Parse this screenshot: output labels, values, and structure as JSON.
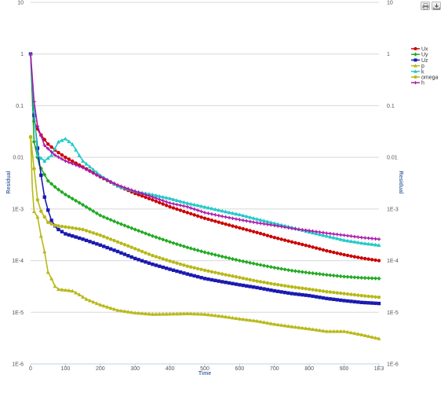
{
  "toolbar": {
    "print_icon": "printer-icon",
    "export_icon": "download-icon"
  },
  "chart_data": {
    "type": "line",
    "xlabel": "Time",
    "ylabel": "Residual",
    "ylabel_right": "Residual",
    "log_y": true,
    "xlim": [
      0,
      1000
    ],
    "ylim": [
      1e-06,
      10
    ],
    "grid": true,
    "legend_position": "top-right",
    "x_ticks": [
      "0",
      "100",
      "200",
      "300",
      "400",
      "500",
      "600",
      "700",
      "800",
      "900",
      "1E3"
    ],
    "y_ticks": [
      {
        "value": 10,
        "label": "10"
      },
      {
        "value": 1,
        "label": "1"
      },
      {
        "value": 0.1,
        "label": "0.1"
      },
      {
        "value": 0.01,
        "label": "0.01"
      },
      {
        "value": 0.001,
        "label": "1E-3"
      },
      {
        "value": 0.0001,
        "label": "1E-4"
      },
      {
        "value": 1e-05,
        "label": "1E-5"
      },
      {
        "value": 1e-06,
        "label": "1E-6"
      }
    ],
    "series": [
      {
        "name": "Ux",
        "color": "#cc0000",
        "marker": "circle",
        "points": [
          [
            0,
            1.0
          ],
          [
            10,
            0.05
          ],
          [
            25,
            0.03
          ],
          [
            50,
            0.018
          ],
          [
            75,
            0.013
          ],
          [
            100,
            0.01
          ],
          [
            150,
            0.0065
          ],
          [
            200,
            0.0042
          ],
          [
            250,
            0.0028
          ],
          [
            300,
            0.002
          ],
          [
            350,
            0.0015
          ],
          [
            400,
            0.0011
          ],
          [
            450,
            0.00085
          ],
          [
            500,
            0.00066
          ],
          [
            550,
            0.00053
          ],
          [
            600,
            0.00043
          ],
          [
            650,
            0.00035
          ],
          [
            700,
            0.00028
          ],
          [
            750,
            0.00023
          ],
          [
            800,
            0.00019
          ],
          [
            850,
            0.000155
          ],
          [
            900,
            0.00013
          ],
          [
            950,
            0.000112
          ],
          [
            1000,
            0.0001
          ]
        ]
      },
      {
        "name": "Uy",
        "color": "#22aa22",
        "marker": "diamond",
        "points": [
          [
            0,
            1.0
          ],
          [
            10,
            0.02
          ],
          [
            25,
            0.007
          ],
          [
            50,
            0.0035
          ],
          [
            75,
            0.0025
          ],
          [
            100,
            0.0019
          ],
          [
            150,
            0.0012
          ],
          [
            200,
            0.00075
          ],
          [
            250,
            0.00054
          ],
          [
            300,
            0.0004
          ],
          [
            350,
            0.0003
          ],
          [
            400,
            0.00023
          ],
          [
            450,
            0.00018
          ],
          [
            500,
            0.000145
          ],
          [
            550,
            0.00012
          ],
          [
            600,
            0.0001
          ],
          [
            650,
            8.5e-05
          ],
          [
            700,
            7.3e-05
          ],
          [
            750,
            6.4e-05
          ],
          [
            800,
            5.8e-05
          ],
          [
            850,
            5.3e-05
          ],
          [
            900,
            4.9e-05
          ],
          [
            950,
            4.65e-05
          ],
          [
            1000,
            4.5e-05
          ]
        ]
      },
      {
        "name": "Uz",
        "color": "#1a1ab0",
        "marker": "square",
        "points": [
          [
            0,
            1.0
          ],
          [
            10,
            0.065
          ],
          [
            20,
            0.015
          ],
          [
            30,
            0.0045
          ],
          [
            40,
            0.0017
          ],
          [
            50,
            0.00095
          ],
          [
            60,
            0.0006
          ],
          [
            75,
            0.00042
          ],
          [
            100,
            0.00033
          ],
          [
            150,
            0.00026
          ],
          [
            200,
            0.0002
          ],
          [
            250,
            0.00015
          ],
          [
            300,
            0.00011
          ],
          [
            350,
            8.5e-05
          ],
          [
            400,
            6.8e-05
          ],
          [
            450,
            5.5e-05
          ],
          [
            500,
            4.5e-05
          ],
          [
            550,
            3.9e-05
          ],
          [
            600,
            3.4e-05
          ],
          [
            650,
            3e-05
          ],
          [
            700,
            2.6e-05
          ],
          [
            750,
            2.3e-05
          ],
          [
            800,
            2.1e-05
          ],
          [
            850,
            1.85e-05
          ],
          [
            900,
            1.68e-05
          ],
          [
            950,
            1.55e-05
          ],
          [
            1000,
            1.48e-05
          ]
        ]
      },
      {
        "name": "p",
        "color": "#b8b818",
        "marker": "triangle",
        "points": [
          [
            0,
            0.025
          ],
          [
            5,
            0.0025
          ],
          [
            10,
            0.0009
          ],
          [
            20,
            0.0007
          ],
          [
            30,
            0.0003
          ],
          [
            40,
            0.00015
          ],
          [
            50,
            6e-05
          ],
          [
            60,
            4.5e-05
          ],
          [
            70,
            3.2e-05
          ],
          [
            80,
            2.8e-05
          ],
          [
            100,
            2.7e-05
          ],
          [
            120,
            2.6e-05
          ],
          [
            140,
            2.2e-05
          ],
          [
            160,
            1.8e-05
          ],
          [
            200,
            1.4e-05
          ],
          [
            250,
            1.1e-05
          ],
          [
            300,
            9.8e-06
          ],
          [
            350,
            9.2e-06
          ],
          [
            400,
            9.3e-06
          ],
          [
            450,
            9.5e-06
          ],
          [
            500,
            9.2e-06
          ],
          [
            550,
            8.4e-06
          ],
          [
            600,
            7.5e-06
          ],
          [
            650,
            6.8e-06
          ],
          [
            700,
            5.9e-06
          ],
          [
            750,
            5.3e-06
          ],
          [
            800,
            4.8e-06
          ],
          [
            850,
            4.3e-06
          ],
          [
            900,
            4.3e-06
          ],
          [
            950,
            3.7e-06
          ],
          [
            1000,
            3.1e-06
          ]
        ]
      },
      {
        "name": "k",
        "color": "#22c8c8",
        "marker": "triangle",
        "points": [
          [
            0,
            1.0
          ],
          [
            10,
            0.08
          ],
          [
            20,
            0.011
          ],
          [
            40,
            0.0085
          ],
          [
            60,
            0.011
          ],
          [
            80,
            0.02
          ],
          [
            100,
            0.023
          ],
          [
            120,
            0.018
          ],
          [
            150,
            0.0085
          ],
          [
            200,
            0.0045
          ],
          [
            250,
            0.0028
          ],
          [
            300,
            0.0022
          ],
          [
            350,
            0.0019
          ],
          [
            400,
            0.0016
          ],
          [
            450,
            0.0013
          ],
          [
            500,
            0.0011
          ],
          [
            550,
            0.00092
          ],
          [
            600,
            0.00078
          ],
          [
            650,
            0.00064
          ],
          [
            700,
            0.00053
          ],
          [
            750,
            0.00044
          ],
          [
            800,
            0.00036
          ],
          [
            850,
            0.0003
          ],
          [
            900,
            0.00025
          ],
          [
            950,
            0.00022
          ],
          [
            1000,
            0.0002
          ]
        ]
      },
      {
        "name": "omega",
        "color": "#b8b818",
        "marker": "circle",
        "points": [
          [
            0,
            0.025
          ],
          [
            10,
            0.006
          ],
          [
            20,
            0.0015
          ],
          [
            30,
            0.0009
          ],
          [
            50,
            0.00055
          ],
          [
            70,
            0.00048
          ],
          [
            100,
            0.00045
          ],
          [
            150,
            0.0004
          ],
          [
            200,
            0.00031
          ],
          [
            250,
            0.00023
          ],
          [
            300,
            0.00017
          ],
          [
            350,
            0.000125
          ],
          [
            400,
            9.8e-05
          ],
          [
            450,
            7.8e-05
          ],
          [
            500,
            6.5e-05
          ],
          [
            550,
            5.5e-05
          ],
          [
            600,
            4.7e-05
          ],
          [
            650,
            4e-05
          ],
          [
            700,
            3.5e-05
          ],
          [
            750,
            3.1e-05
          ],
          [
            800,
            2.8e-05
          ],
          [
            850,
            2.5e-05
          ],
          [
            900,
            2.3e-05
          ],
          [
            950,
            2.1e-05
          ],
          [
            1000,
            1.95e-05
          ]
        ]
      },
      {
        "name": "h",
        "color": "#aa1aaa",
        "marker": "cross",
        "points": [
          [
            0,
            1.0
          ],
          [
            10,
            0.12
          ],
          [
            20,
            0.04
          ],
          [
            40,
            0.017
          ],
          [
            70,
            0.011
          ],
          [
            100,
            0.0085
          ],
          [
            150,
            0.0063
          ],
          [
            200,
            0.0042
          ],
          [
            250,
            0.0029
          ],
          [
            300,
            0.0022
          ],
          [
            350,
            0.0017
          ],
          [
            400,
            0.0013
          ],
          [
            450,
            0.0011
          ],
          [
            500,
            0.00085
          ],
          [
            550,
            0.00072
          ],
          [
            600,
            0.00062
          ],
          [
            650,
            0.00054
          ],
          [
            700,
            0.00048
          ],
          [
            750,
            0.00042
          ],
          [
            800,
            0.00038
          ],
          [
            850,
            0.00034
          ],
          [
            900,
            0.00031
          ],
          [
            950,
            0.00028
          ],
          [
            1000,
            0.00026
          ]
        ]
      }
    ]
  }
}
